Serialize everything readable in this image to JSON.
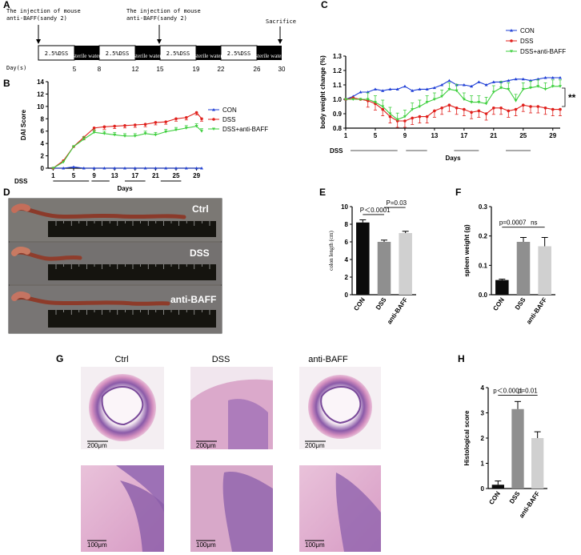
{
  "panels": {
    "A": "A",
    "B": "B",
    "C": "C",
    "D": "D",
    "E": "E",
    "F": "F",
    "G": "G",
    "H": "H"
  },
  "panelA": {
    "injection1": [
      "The injection of mouse",
      "anti-BAFF(sandy 2)"
    ],
    "injection2": [
      "The injection of mouse",
      "anti-BAFF(sandy 2)"
    ],
    "sacrifice": "Sacrifice",
    "day_label": "Day(s)",
    "segments": [
      "2.5%DSS",
      "sterile water",
      "2.5%DSS",
      "sterile water",
      "2.5%DSS",
      "sterile water",
      "2.5%DSS",
      "sterile water"
    ],
    "days": [
      "5",
      "8",
      "12",
      "15",
      "19",
      "22",
      "26",
      "30"
    ]
  },
  "panelD": {
    "labels": [
      "Ctrl",
      "DSS",
      "anti-BAFF"
    ]
  },
  "panelG": {
    "titles": [
      "Ctrl",
      "DSS",
      "anti-BAFF"
    ],
    "scale_top": [
      "200μm",
      "200μm",
      "200μm"
    ],
    "scale_bottom": [
      "100μm",
      "100μm",
      "100μm"
    ]
  },
  "colors": {
    "con": "#1f3fd6",
    "dss": "#e0201c",
    "anti": "#3ecf3e",
    "bar_black": "#0b0b0b",
    "bar_grey": "#8f8f8f",
    "bar_light": "#d0d0d0"
  },
  "chart_data": [
    {
      "id": "B",
      "type": "line",
      "ylabel": "DAI Score",
      "xlabel": "Days",
      "ylim": [
        0,
        14
      ],
      "yticks": [
        "0",
        "2",
        "4",
        "6",
        "8",
        "10",
        "12",
        "14"
      ],
      "xticks": [
        "1",
        "5",
        "9",
        "13",
        "17",
        "21",
        "25",
        "29"
      ],
      "dss_label": "DSS",
      "legend": [
        "CON",
        "DSS",
        "DSS+anti-BAFF"
      ],
      "x": [
        1,
        3,
        5,
        7,
        9,
        11,
        13,
        15,
        17,
        19,
        21,
        23,
        25,
        27,
        29,
        30
      ],
      "series": [
        {
          "name": "CON",
          "values": [
            0,
            0,
            0.2,
            0,
            0,
            0,
            0,
            0,
            0,
            0,
            0,
            0,
            0,
            0,
            0,
            0
          ]
        },
        {
          "name": "DSS",
          "values": [
            0,
            1.2,
            3.5,
            5,
            6.5,
            6.7,
            6.8,
            6.9,
            7,
            7.1,
            7.4,
            7.5,
            8,
            8.2,
            9,
            8
          ]
        },
        {
          "name": "DSS+anti-BAFF",
          "values": [
            0,
            1,
            3.5,
            4.7,
            5.8,
            5.6,
            5.4,
            5.2,
            5.2,
            5.6,
            5.4,
            5.9,
            6.2,
            6.5,
            6.8,
            6
          ]
        }
      ]
    },
    {
      "id": "C",
      "type": "line",
      "ylabel": "body weight change (%)",
      "xlabel": "Days",
      "ylim": [
        0.8,
        1.3
      ],
      "yticks": [
        "0.8",
        "0.9",
        "1.0",
        "1.1",
        "1.2",
        "1.3"
      ],
      "xticks": [
        "1",
        "5",
        "9",
        "13",
        "17",
        "21",
        "25",
        "29"
      ],
      "dss_label": "DSS",
      "significance": "**",
      "legend": [
        "CON",
        "DSS",
        "DSS+anti-BAFF"
      ],
      "x": [
        1,
        2,
        3,
        4,
        5,
        6,
        7,
        8,
        9,
        10,
        11,
        12,
        13,
        14,
        15,
        16,
        17,
        18,
        19,
        20,
        21,
        22,
        23,
        24,
        25,
        26,
        27,
        28,
        29,
        30
      ],
      "series": [
        {
          "name": "CON",
          "values": [
            1.0,
            1.02,
            1.05,
            1.05,
            1.07,
            1.06,
            1.07,
            1.07,
            1.09,
            1.06,
            1.07,
            1.07,
            1.08,
            1.1,
            1.13,
            1.1,
            1.1,
            1.09,
            1.12,
            1.1,
            1.12,
            1.12,
            1.13,
            1.14,
            1.14,
            1.13,
            1.14,
            1.15,
            1.15,
            1.15
          ]
        },
        {
          "name": "DSS",
          "values": [
            1.0,
            1.01,
            1.0,
            0.99,
            0.97,
            0.93,
            0.88,
            0.85,
            0.85,
            0.87,
            0.88,
            0.88,
            0.92,
            0.94,
            0.96,
            0.94,
            0.93,
            0.91,
            0.92,
            0.9,
            0.94,
            0.94,
            0.92,
            0.93,
            0.96,
            0.95,
            0.95,
            0.94,
            0.93,
            0.93
          ]
        },
        {
          "name": "DSS+anti-BAFF",
          "values": [
            1.0,
            1.0,
            1.0,
            1.0,
            0.98,
            0.95,
            0.9,
            0.86,
            0.88,
            0.93,
            0.95,
            0.98,
            1.0,
            1.02,
            1.07,
            1.06,
            1.0,
            0.98,
            0.98,
            0.97,
            1.05,
            1.08,
            1.07,
            0.99,
            1.07,
            1.08,
            1.09,
            1.07,
            1.09,
            1.09
          ]
        }
      ]
    },
    {
      "id": "E",
      "type": "bar",
      "ylabel": "colon length (cm)",
      "ylim": [
        0,
        10
      ],
      "yticks": [
        "0",
        "2",
        "4",
        "6",
        "8",
        "10"
      ],
      "categories": [
        "CON",
        "DSS",
        "anti-BAFF"
      ],
      "values": [
        8.2,
        6.0,
        7.0
      ],
      "errors": [
        0.3,
        0.2,
        0.2
      ],
      "annotations": [
        "P＜0.0001",
        "P=0.03"
      ]
    },
    {
      "id": "F",
      "type": "bar",
      "ylabel": "spleen weight (g)",
      "ylim": [
        0,
        0.3
      ],
      "yticks": [
        "0.0",
        "0.1",
        "0.2",
        "0.3"
      ],
      "categories": [
        "CON",
        "DSS",
        "anti-BAFF"
      ],
      "values": [
        0.05,
        0.18,
        0.165
      ],
      "errors": [
        0.003,
        0.015,
        0.03
      ],
      "annotations": [
        "p=0.0007",
        "ns"
      ]
    },
    {
      "id": "H",
      "type": "bar",
      "ylabel": "Histological score",
      "ylim": [
        0,
        4
      ],
      "yticks": [
        "0",
        "1",
        "2",
        "3",
        "4"
      ],
      "categories": [
        "CON",
        "DSS",
        "anti-BAFF"
      ],
      "values": [
        0.15,
        3.15,
        2.0
      ],
      "errors": [
        0.15,
        0.3,
        0.25
      ],
      "annotations": [
        "p＜0.0001",
        "p=0.01"
      ]
    }
  ]
}
